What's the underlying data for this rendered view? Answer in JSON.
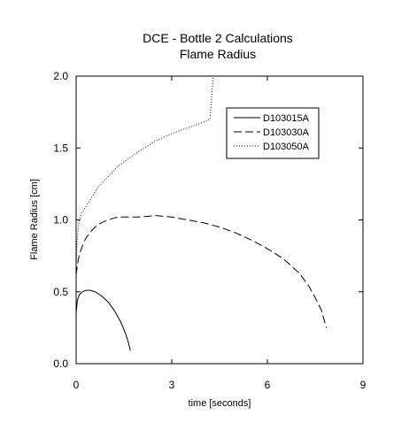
{
  "chart_data": {
    "type": "line",
    "title": "DCE - Bottle 2 Calculations",
    "subtitle": "Flame Radius",
    "xlabel": "time [seconds]",
    "ylabel": "Flame Radius [cm]",
    "xlim": [
      0,
      9
    ],
    "ylim": [
      0,
      2.0
    ],
    "x_ticks": [
      0,
      3,
      6,
      9
    ],
    "y_ticks": [
      0.0,
      0.5,
      1.0,
      1.5,
      2.0
    ],
    "x_tick_labels": [
      "0",
      "3",
      "6",
      "9"
    ],
    "y_tick_labels": [
      "0.0",
      "0.5",
      "1.0",
      "1.5",
      "2.0"
    ],
    "grid": false,
    "legend_position": "top-right",
    "series": [
      {
        "name": "D103015A",
        "dash": "solid",
        "x": [
          0.0,
          0.04,
          0.1,
          0.2,
          0.3,
          0.45,
          0.6,
          0.8,
          1.0,
          1.2,
          1.4,
          1.55,
          1.65,
          1.7
        ],
        "y": [
          0.35,
          0.44,
          0.48,
          0.5,
          0.51,
          0.51,
          0.5,
          0.47,
          0.43,
          0.37,
          0.29,
          0.21,
          0.14,
          0.09
        ]
      },
      {
        "name": "D103030A",
        "dash": "dashed",
        "x": [
          0.0,
          0.05,
          0.1,
          0.2,
          0.3,
          0.5,
          0.7,
          1.0,
          1.3,
          1.6,
          2.0,
          2.5,
          3.0,
          3.5,
          4.0,
          4.5,
          5.0,
          5.5,
          6.0,
          6.5,
          7.0,
          7.3,
          7.5,
          7.7,
          7.85
        ],
        "y": [
          0.62,
          0.7,
          0.76,
          0.82,
          0.87,
          0.93,
          0.97,
          1.0,
          1.02,
          1.02,
          1.02,
          1.03,
          1.02,
          1.0,
          0.98,
          0.95,
          0.91,
          0.86,
          0.8,
          0.73,
          0.63,
          0.54,
          0.46,
          0.37,
          0.25
        ]
      },
      {
        "name": "D103050A",
        "dash": "dotted",
        "x": [
          0.0,
          0.03,
          0.08,
          0.15,
          0.3,
          0.5,
          0.7,
          1.0,
          1.3,
          1.6,
          2.0,
          2.5,
          3.0,
          3.5,
          4.0,
          4.2,
          4.25,
          4.3
        ],
        "y": [
          0.68,
          0.85,
          0.98,
          1.04,
          1.09,
          1.16,
          1.23,
          1.3,
          1.37,
          1.42,
          1.48,
          1.55,
          1.6,
          1.64,
          1.68,
          1.7,
          1.85,
          2.0
        ]
      }
    ]
  }
}
